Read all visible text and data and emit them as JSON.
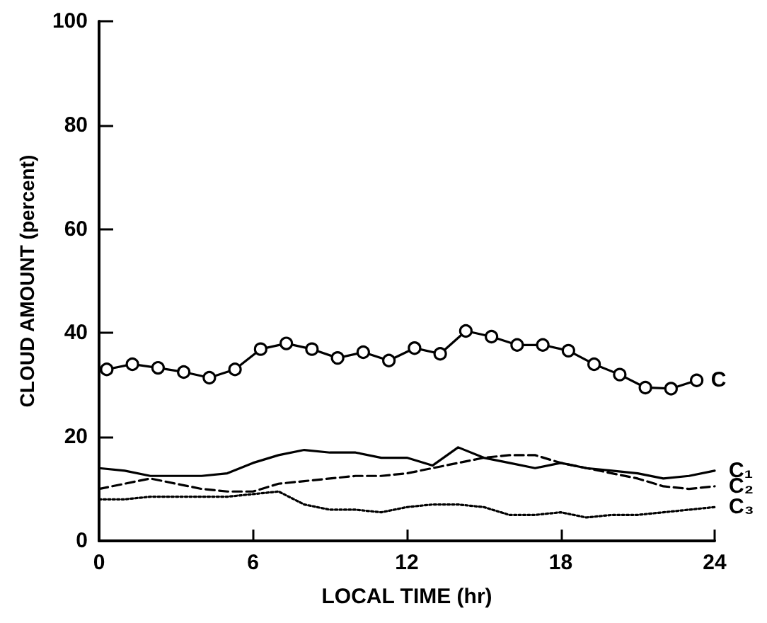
{
  "chart_data": {
    "type": "line",
    "xlabel": "LOCAL TIME (hr)",
    "ylabel": "CLOUD AMOUNT (percent)",
    "xlim": [
      0,
      24
    ],
    "xticks": [
      0,
      6,
      12,
      18,
      24
    ],
    "ylim": [
      0,
      100
    ],
    "yticks": [
      0,
      20,
      40,
      60,
      80,
      100
    ],
    "grid": false,
    "legend": false,
    "series": [
      {
        "name": "C",
        "color": "#000000",
        "marker": "circle",
        "line_style": "solid",
        "x": [
          0.3,
          1.3,
          2.3,
          3.3,
          4.3,
          5.3,
          6.3,
          7.3,
          8.3,
          9.3,
          10.3,
          11.3,
          12.3,
          13.3,
          14.3,
          15.3,
          16.3,
          17.3,
          18.3,
          19.3,
          20.3,
          21.3,
          22.3,
          23.3
        ],
        "values": [
          33,
          34,
          33.3,
          32.5,
          31.4,
          33,
          36.9,
          38,
          36.9,
          35.2,
          36.3,
          34.7,
          37.1,
          36,
          40.4,
          39.3,
          37.7,
          37.7,
          36.6,
          34,
          32,
          29.5,
          29.3,
          30.9
        ]
      },
      {
        "name": "C₁",
        "color": "#000000",
        "marker": "none",
        "line_style": "solid",
        "x": [
          0,
          1,
          2,
          3,
          4,
          5,
          6,
          7,
          8,
          9,
          10,
          11,
          12,
          13,
          14,
          15,
          16,
          17,
          18,
          19,
          20,
          21,
          22,
          23,
          24
        ],
        "values": [
          14,
          13.5,
          12.5,
          12.5,
          12.5,
          13,
          15,
          16.5,
          17.5,
          17,
          17,
          16,
          16,
          14.5,
          18,
          16,
          15,
          14,
          15,
          14,
          13.5,
          13,
          12,
          12.5,
          13.5
        ]
      },
      {
        "name": "C₂",
        "color": "#000000",
        "marker": "none",
        "line_style": "dashed",
        "x": [
          0,
          1,
          2,
          3,
          4,
          5,
          6,
          7,
          8,
          9,
          10,
          11,
          12,
          13,
          14,
          15,
          16,
          17,
          18,
          19,
          20,
          21,
          22,
          23,
          24
        ],
        "values": [
          10,
          11,
          12,
          11,
          10,
          9.5,
          9.5,
          11,
          11.5,
          12,
          12.5,
          12.5,
          13,
          14,
          15,
          16,
          16.5,
          16.5,
          15,
          14,
          13,
          12,
          10.5,
          10,
          10.5
        ]
      },
      {
        "name": "C₃",
        "color": "#000000",
        "marker": "none",
        "line_style": "dotted",
        "x": [
          0,
          1,
          2,
          3,
          4,
          5,
          6,
          7,
          8,
          9,
          10,
          11,
          12,
          13,
          14,
          15,
          16,
          17,
          18,
          19,
          20,
          21,
          22,
          23,
          24
        ],
        "values": [
          8,
          8,
          8.5,
          8.5,
          8.5,
          8.5,
          9,
          9.5,
          7,
          6,
          6,
          5.5,
          6.5,
          7,
          7,
          6.5,
          5,
          5,
          5.5,
          4.5,
          5,
          5,
          5.5,
          6,
          6.5
        ]
      }
    ]
  }
}
